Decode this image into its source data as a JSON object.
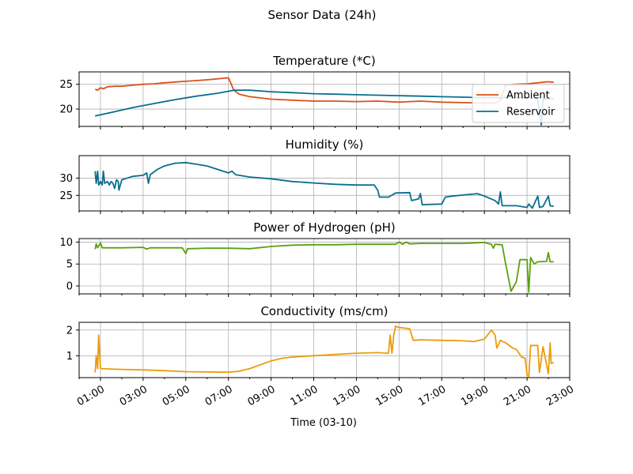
{
  "figure": {
    "suptitle": "Sensor Data (24h)",
    "xlabel": "Time (03-10)"
  },
  "colors": {
    "ambient": "#d95319",
    "reservoir": "#0b6e8e",
    "humidity": "#0b6e8e",
    "ph": "#5aa10f",
    "conductivity": "#eb9c0b",
    "grid": "#b0b0b0",
    "axes": "#000000"
  },
  "chart_data": [
    {
      "type": "line",
      "title": "Temperature (*C)",
      "xlim": [
        "00:00",
        "23:00"
      ],
      "ylim": [
        16.5,
        27.5
      ],
      "yticks": [
        20,
        25
      ],
      "grid": true,
      "legend_position": "right",
      "series": [
        {
          "name": "Ambient",
          "color_key": "ambient",
          "points": [
            [
              "00:45",
              24.0
            ],
            [
              "00:52",
              23.8
            ],
            [
              "01:00",
              24.3
            ],
            [
              "01:08",
              24.1
            ],
            [
              "01:20",
              24.5
            ],
            [
              "01:40",
              24.6
            ],
            [
              "02:00",
              24.6
            ],
            [
              "02:30",
              24.8
            ],
            [
              "03:00",
              25.0
            ],
            [
              "03:30",
              25.1
            ],
            [
              "04:00",
              25.3
            ],
            [
              "05:00",
              25.6
            ],
            [
              "06:00",
              25.9
            ],
            [
              "07:00",
              26.3
            ],
            [
              "07:07",
              25.2
            ],
            [
              "07:15",
              23.8
            ],
            [
              "07:30",
              23.0
            ],
            [
              "08:00",
              22.5
            ],
            [
              "09:00",
              22.0
            ],
            [
              "10:00",
              21.8
            ],
            [
              "11:00",
              21.6
            ],
            [
              "12:00",
              21.6
            ],
            [
              "13:00",
              21.5
            ],
            [
              "14:00",
              21.6
            ],
            [
              "15:00",
              21.4
            ],
            [
              "15:30",
              21.5
            ],
            [
              "16:00",
              21.6
            ],
            [
              "17:00",
              21.4
            ],
            [
              "18:00",
              21.3
            ],
            [
              "19:00",
              21.2
            ],
            [
              "19:30",
              21.2
            ],
            [
              "19:45",
              21.8
            ],
            [
              "20:00",
              24.8
            ],
            [
              "20:30",
              25.0
            ],
            [
              "21:00",
              25.1
            ],
            [
              "21:30",
              25.3
            ],
            [
              "22:00",
              25.5
            ],
            [
              "22:15",
              25.4
            ]
          ]
        },
        {
          "name": "Reservoir",
          "color_key": "reservoir",
          "points": [
            [
              "00:45",
              18.6
            ],
            [
              "01:30",
              19.3
            ],
            [
              "02:30",
              20.3
            ],
            [
              "03:30",
              21.1
            ],
            [
              "04:30",
              21.9
            ],
            [
              "05:30",
              22.6
            ],
            [
              "06:30",
              23.2
            ],
            [
              "07:00",
              23.6
            ],
            [
              "07:15",
              23.8
            ],
            [
              "08:00",
              23.8
            ],
            [
              "09:00",
              23.5
            ],
            [
              "10:00",
              23.3
            ],
            [
              "11:00",
              23.1
            ],
            [
              "12:00",
              23.0
            ],
            [
              "13:00",
              22.9
            ],
            [
              "14:00",
              22.8
            ],
            [
              "15:00",
              22.7
            ],
            [
              "16:00",
              22.6
            ],
            [
              "17:00",
              22.5
            ],
            [
              "18:00",
              22.4
            ],
            [
              "19:00",
              22.3
            ],
            [
              "20:00",
              22.3
            ],
            [
              "21:00",
              22.3
            ],
            [
              "21:30",
              22.0
            ],
            [
              "21:40",
              16.8
            ],
            [
              "21:45",
              22.0
            ],
            [
              "22:15",
              22.1
            ]
          ]
        }
      ]
    },
    {
      "type": "line",
      "title": "Humidity (%)",
      "xlim": [
        "00:00",
        "23:00"
      ],
      "ylim": [
        20.5,
        36.5
      ],
      "yticks": [
        25,
        30
      ],
      "grid": true,
      "series": [
        {
          "color_key": "humidity",
          "points": [
            [
              "00:45",
              32.0
            ],
            [
              "00:48",
              28.5
            ],
            [
              "00:52",
              32.0
            ],
            [
              "00:55",
              28.0
            ],
            [
              "01:00",
              29.0
            ],
            [
              "01:05",
              28.0
            ],
            [
              "01:08",
              32.0
            ],
            [
              "01:12",
              28.5
            ],
            [
              "01:20",
              29.0
            ],
            [
              "01:25",
              28.0
            ],
            [
              "01:30",
              29.0
            ],
            [
              "01:35",
              28.5
            ],
            [
              "01:40",
              27.0
            ],
            [
              "01:45",
              29.5
            ],
            [
              "01:50",
              29.0
            ],
            [
              "01:52",
              26.5
            ],
            [
              "02:00",
              29.5
            ],
            [
              "02:30",
              30.5
            ],
            [
              "03:00",
              30.8
            ],
            [
              "03:10",
              31.5
            ],
            [
              "03:15",
              28.5
            ],
            [
              "03:20",
              31.0
            ],
            [
              "03:40",
              32.5
            ],
            [
              "04:00",
              33.5
            ],
            [
              "04:30",
              34.3
            ],
            [
              "05:00",
              34.5
            ],
            [
              "05:30",
              34.0
            ],
            [
              "06:00",
              33.5
            ],
            [
              "06:30",
              32.5
            ],
            [
              "07:00",
              31.5
            ],
            [
              "07:10",
              32.0
            ],
            [
              "07:20",
              31.0
            ],
            [
              "08:00",
              30.3
            ],
            [
              "09:00",
              29.8
            ],
            [
              "10:00",
              29.0
            ],
            [
              "11:00",
              28.6
            ],
            [
              "12:00",
              28.2
            ],
            [
              "13:00",
              28.0
            ],
            [
              "13:50",
              28.0
            ],
            [
              "14:00",
              26.5
            ],
            [
              "14:05",
              24.5
            ],
            [
              "14:30",
              24.5
            ],
            [
              "14:50",
              25.7
            ],
            [
              "15:30",
              25.8
            ],
            [
              "15:35",
              23.5
            ],
            [
              "15:55",
              24.0
            ],
            [
              "16:00",
              25.5
            ],
            [
              "16:05",
              22.3
            ],
            [
              "16:30",
              22.4
            ],
            [
              "17:00",
              22.5
            ],
            [
              "17:10",
              24.5
            ],
            [
              "17:30",
              24.8
            ],
            [
              "18:00",
              25.1
            ],
            [
              "18:40",
              25.5
            ],
            [
              "19:00",
              24.8
            ],
            [
              "19:30",
              23.5
            ],
            [
              "19:40",
              22.5
            ],
            [
              "19:45",
              26.0
            ],
            [
              "19:50",
              22.0
            ],
            [
              "20:30",
              22.0
            ],
            [
              "21:00",
              21.5
            ],
            [
              "21:05",
              22.5
            ],
            [
              "21:15",
              21.3
            ],
            [
              "21:30",
              24.8
            ],
            [
              "21:35",
              21.5
            ],
            [
              "21:45",
              21.8
            ],
            [
              "22:00",
              24.8
            ],
            [
              "22:05",
              22.0
            ],
            [
              "22:15",
              21.8
            ]
          ]
        }
      ]
    },
    {
      "type": "line",
      "title": "Power of Hydrogen (pH)",
      "xlim": [
        "00:00",
        "23:00"
      ],
      "ylim": [
        -1.8,
        10.8
      ],
      "yticks": [
        0,
        5,
        10
      ],
      "grid": true,
      "series": [
        {
          "color_key": "ph",
          "points": [
            [
              "00:45",
              8.4
            ],
            [
              "00:48",
              9.6
            ],
            [
              "00:52",
              8.7
            ],
            [
              "01:00",
              9.8
            ],
            [
              "01:05",
              8.7
            ],
            [
              "02:00",
              8.7
            ],
            [
              "03:00",
              8.8
            ],
            [
              "03:10",
              8.4
            ],
            [
              "03:20",
              8.7
            ],
            [
              "04:00",
              8.7
            ],
            [
              "04:50",
              8.7
            ],
            [
              "05:00",
              7.4
            ],
            [
              "05:05",
              8.5
            ],
            [
              "06:00",
              8.6
            ],
            [
              "07:00",
              8.6
            ],
            [
              "08:00",
              8.5
            ],
            [
              "09:00",
              9.0
            ],
            [
              "10:00",
              9.3
            ],
            [
              "11:00",
              9.4
            ],
            [
              "12:00",
              9.4
            ],
            [
              "13:00",
              9.5
            ],
            [
              "14:00",
              9.5
            ],
            [
              "14:50",
              9.5
            ],
            [
              "15:00",
              10.0
            ],
            [
              "15:10",
              9.5
            ],
            [
              "15:20",
              10.0
            ],
            [
              "15:30",
              9.6
            ],
            [
              "16:00",
              9.7
            ],
            [
              "17:00",
              9.7
            ],
            [
              "18:00",
              9.7
            ],
            [
              "19:00",
              9.9
            ],
            [
              "19:20",
              9.5
            ],
            [
              "19:25",
              8.6
            ],
            [
              "19:30",
              9.5
            ],
            [
              "19:50",
              9.4
            ],
            [
              "20:00",
              5.0
            ],
            [
              "20:15",
              -1.2
            ],
            [
              "20:30",
              1.0
            ],
            [
              "20:40",
              6.0
            ],
            [
              "21:00",
              6.0
            ],
            [
              "21:05",
              -1.4
            ],
            [
              "21:10",
              6.5
            ],
            [
              "21:20",
              5.0
            ],
            [
              "21:30",
              5.5
            ],
            [
              "21:55",
              5.6
            ],
            [
              "22:00",
              7.6
            ],
            [
              "22:05",
              5.5
            ],
            [
              "22:15",
              5.5
            ]
          ]
        }
      ]
    },
    {
      "type": "line",
      "title": "Conductivity (ms/cm)",
      "xlim": [
        "00:00",
        "23:00"
      ],
      "ylim": [
        0.15,
        2.3
      ],
      "yticks": [
        1,
        2
      ],
      "grid": true,
      "series": [
        {
          "color_key": "conductivity",
          "points": [
            [
              "00:45",
              0.35
            ],
            [
              "00:48",
              1.0
            ],
            [
              "00:52",
              0.5
            ],
            [
              "00:55",
              1.8
            ],
            [
              "01:00",
              0.5
            ],
            [
              "02:00",
              0.47
            ],
            [
              "03:00",
              0.45
            ],
            [
              "04:00",
              0.42
            ],
            [
              "05:00",
              0.38
            ],
            [
              "06:00",
              0.37
            ],
            [
              "07:00",
              0.36
            ],
            [
              "07:30",
              0.4
            ],
            [
              "08:00",
              0.5
            ],
            [
              "08:30",
              0.65
            ],
            [
              "09:00",
              0.8
            ],
            [
              "09:30",
              0.9
            ],
            [
              "10:00",
              0.95
            ],
            [
              "11:00",
              1.0
            ],
            [
              "12:00",
              1.05
            ],
            [
              "13:00",
              1.1
            ],
            [
              "14:00",
              1.12
            ],
            [
              "14:30",
              1.1
            ],
            [
              "14:35",
              1.8
            ],
            [
              "14:40",
              1.1
            ],
            [
              "14:45",
              1.8
            ],
            [
              "14:50",
              2.15
            ],
            [
              "15:00",
              2.1
            ],
            [
              "15:30",
              2.05
            ],
            [
              "15:40",
              1.6
            ],
            [
              "16:00",
              1.62
            ],
            [
              "17:00",
              1.6
            ],
            [
              "18:00",
              1.58
            ],
            [
              "18:30",
              1.55
            ],
            [
              "19:00",
              1.65
            ],
            [
              "19:20",
              2.0
            ],
            [
              "19:30",
              1.8
            ],
            [
              "19:35",
              1.3
            ],
            [
              "19:45",
              1.6
            ],
            [
              "20:00",
              1.5
            ],
            [
              "20:20",
              1.3
            ],
            [
              "20:30",
              1.25
            ],
            [
              "20:45",
              0.95
            ],
            [
              "20:55",
              0.9
            ],
            [
              "21:00",
              0.25
            ],
            [
              "21:05",
              0.2
            ],
            [
              "21:10",
              1.4
            ],
            [
              "21:30",
              1.4
            ],
            [
              "21:35",
              0.35
            ],
            [
              "21:45",
              1.35
            ],
            [
              "22:00",
              0.3
            ],
            [
              "22:05",
              1.5
            ],
            [
              "22:08",
              0.7
            ],
            [
              "22:15",
              0.75
            ]
          ]
        }
      ]
    }
  ],
  "xaxis": {
    "tick_labels": [
      "01:00",
      "03:00",
      "05:00",
      "07:00",
      "09:00",
      "11:00",
      "13:00",
      "15:00",
      "17:00",
      "19:00",
      "21:00",
      "23:00"
    ]
  }
}
